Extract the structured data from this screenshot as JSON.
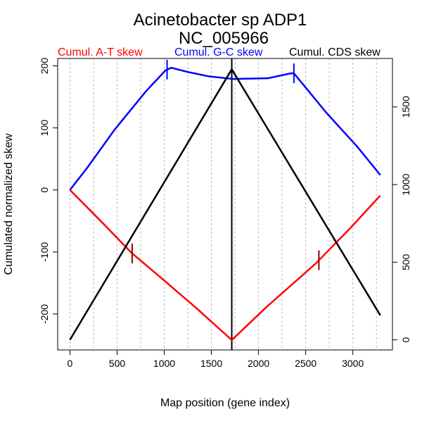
{
  "chart_data": {
    "type": "line",
    "title": "Acinetobacter sp ADP1",
    "subtitle": "NC_005966",
    "xlabel": "Map position (gene index)",
    "ylabel": "Cumulated normalized skew",
    "xlim": [
      -130,
      3420
    ],
    "ylim": [
      -258,
      212
    ],
    "y2lim": [
      -65,
      1812
    ],
    "xticks": [
      0,
      500,
      1000,
      1500,
      2000,
      2500,
      3000
    ],
    "yticks": [
      -200,
      -100,
      0,
      100,
      200
    ],
    "y2ticks": [
      0,
      500,
      1000,
      1500
    ],
    "grid_x": [
      0,
      250,
      500,
      750,
      1000,
      1250,
      1500,
      1750,
      2000,
      2250,
      2500,
      2750,
      3000,
      3250
    ],
    "terminus_line_x": 1716,
    "legend": [
      {
        "label": "Cumul. A-T skew",
        "color": "#ff0000"
      },
      {
        "label": "Cumul. G-C skew",
        "color": "#0000ff"
      },
      {
        "label": "Cumul. CDS skew",
        "color": "#000000"
      }
    ],
    "series": [
      {
        "name": "Cumul. G-C skew",
        "color": "#0000ff",
        "axis": "left",
        "x": [
          0,
          180,
          478,
          806,
          1015,
          1075,
          1254,
          1478,
          1724,
          2097,
          2343,
          2375,
          2522,
          2716,
          3045,
          3291
        ],
        "y": [
          0,
          35,
          98,
          159,
          193,
          197,
          190,
          183,
          179,
          180,
          188,
          188,
          161,
          125,
          70,
          24
        ],
        "ticks_x": [
          1030,
          2375
        ]
      },
      {
        "name": "Cumul. A-T skew",
        "color": "#ff0000",
        "tick_color": "#8b0000",
        "axis": "left",
        "x": [
          0,
          358,
          657,
          1000,
          1351,
          1716,
          2097,
          2604,
          2970,
          3291
        ],
        "y": [
          0,
          -55,
          -102,
          -146,
          -192,
          -242,
          -187,
          -119,
          -62,
          -9
        ],
        "ticks_x": [
          660,
          2640
        ]
      },
      {
        "name": "Cumul. CDS skew",
        "color": "#000000",
        "axis": "right",
        "x": [
          0,
          1716,
          3291
        ],
        "y": [
          0,
          1742,
          158
        ]
      }
    ]
  }
}
